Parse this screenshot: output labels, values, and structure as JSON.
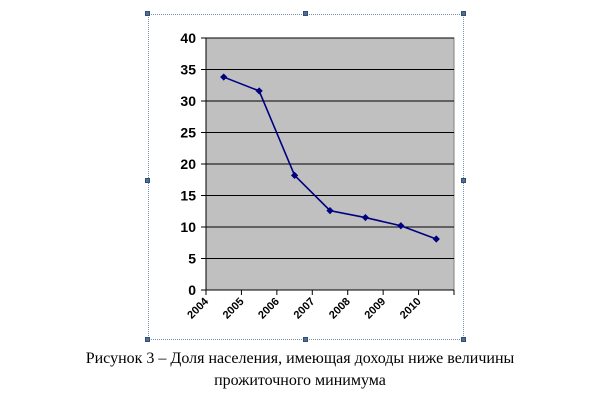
{
  "chart_data": {
    "type": "line",
    "categories": [
      "2004",
      "2005",
      "2006",
      "2007",
      "2008",
      "2009",
      "2010"
    ],
    "x": [
      "2004",
      "2005",
      "2006",
      "2007",
      "2008",
      "2009",
      "2010"
    ],
    "series": [
      {
        "values": [
          33.8,
          31.6,
          18.2,
          12.6,
          11.5,
          10.2,
          8.1
        ]
      }
    ],
    "ylim": [
      0,
      40
    ],
    "yticks": [
      0,
      5,
      10,
      15,
      20,
      25,
      30,
      35,
      40
    ],
    "grid": true,
    "legend": "none",
    "title": "",
    "xlabel": "",
    "ylabel": "",
    "colors": {
      "line": "#000080",
      "plot_bg": "#c0c0c0",
      "grid": "#000000"
    }
  },
  "caption": {
    "line1": "Рисунок 3 – Доля населения, имеющая доходы ниже величины",
    "line2": "прожиточного минимума"
  }
}
